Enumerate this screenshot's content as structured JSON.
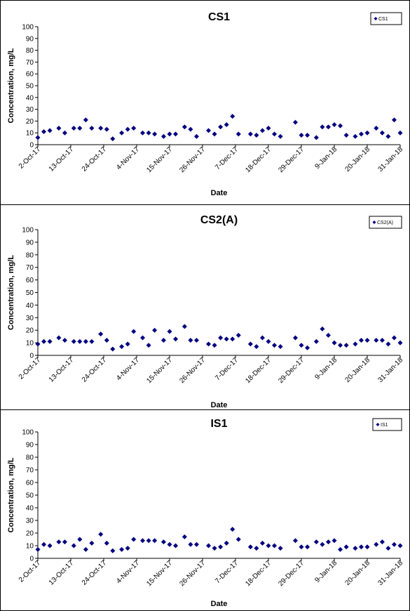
{
  "chart_data": [
    {
      "type": "scatter",
      "title": "CS1",
      "xlabel": "Date",
      "ylabel": "Concentration, mg/L",
      "ylim": [
        0,
        100
      ],
      "yticks": [
        "0",
        "10",
        "20",
        "30",
        "40",
        "50",
        "60",
        "70",
        "80",
        "90",
        "100"
      ],
      "xlim": [
        "2017-10-02",
        "2018-01-31"
      ],
      "xticks": [
        "2-Oct-17",
        "13-Oct-17",
        "24-Oct-17",
        "4-Nov-17",
        "15-Nov-17",
        "26-Nov-17",
        "7-Dec-17",
        "18-Dec-17",
        "29-Dec-17",
        "9-Jan-18",
        "20-Jan-18",
        "31-Jan-18"
      ],
      "legend": "top-right",
      "marker_color": "#000080",
      "series": [
        {
          "name": "CS1",
          "x": [
            "2017-10-02",
            "2017-10-04",
            "2017-10-06",
            "2017-10-09",
            "2017-10-11",
            "2017-10-14",
            "2017-10-16",
            "2017-10-18",
            "2017-10-20",
            "2017-10-23",
            "2017-10-25",
            "2017-10-27",
            "2017-10-30",
            "2017-11-01",
            "2017-11-03",
            "2017-11-06",
            "2017-11-08",
            "2017-11-10",
            "2017-11-13",
            "2017-11-15",
            "2017-11-17",
            "2017-11-20",
            "2017-11-22",
            "2017-11-24",
            "2017-11-28",
            "2017-11-30",
            "2017-12-02",
            "2017-12-04",
            "2017-12-06",
            "2017-12-08",
            "2017-12-12",
            "2017-12-14",
            "2017-12-16",
            "2017-12-18",
            "2017-12-20",
            "2017-12-22",
            "2017-12-27",
            "2017-12-29",
            "2017-12-31",
            "2018-01-03",
            "2018-01-05",
            "2018-01-07",
            "2018-01-09",
            "2018-01-11",
            "2018-01-13",
            "2018-01-16",
            "2018-01-18",
            "2018-01-20",
            "2018-01-23",
            "2018-01-25",
            "2018-01-27",
            "2018-01-29",
            "2018-01-31"
          ],
          "y": [
            6,
            11,
            12,
            14,
            10,
            14,
            14,
            21,
            14,
            14,
            13,
            5,
            10,
            13,
            14,
            10,
            10,
            9,
            7,
            9,
            9,
            15,
            13,
            7,
            12,
            9,
            15,
            17,
            24,
            9,
            9,
            8,
            12,
            14,
            9,
            7,
            19,
            8,
            8,
            6,
            15,
            15,
            17,
            16,
            8,
            7,
            9,
            10,
            14,
            10,
            7,
            21,
            10
          ]
        }
      ]
    },
    {
      "type": "scatter",
      "title": "CS2(A)",
      "xlabel": "Date",
      "ylabel": "Concentration, mg/L",
      "ylim": [
        0,
        100
      ],
      "yticks": [
        "0",
        "10",
        "20",
        "30",
        "40",
        "50",
        "60",
        "70",
        "80",
        "90",
        "100"
      ],
      "xlim": [
        "2017-10-02",
        "2018-01-31"
      ],
      "xticks": [
        "2-Oct-17",
        "13-Oct-17",
        "24-Oct-17",
        "4-Nov-17",
        "15-Nov-17",
        "26-Nov-17",
        "7-Dec-17",
        "18-Dec-17",
        "29-Dec-17",
        "9-Jan-18",
        "20-Jan-18",
        "31-Jan-18"
      ],
      "legend": "top-right",
      "marker_color": "#000080",
      "series": [
        {
          "name": "CS2(A)",
          "x": [
            "2017-10-02",
            "2017-10-04",
            "2017-10-06",
            "2017-10-09",
            "2017-10-11",
            "2017-10-14",
            "2017-10-16",
            "2017-10-18",
            "2017-10-20",
            "2017-10-23",
            "2017-10-25",
            "2017-10-27",
            "2017-10-30",
            "2017-11-01",
            "2017-11-03",
            "2017-11-06",
            "2017-11-08",
            "2017-11-10",
            "2017-11-13",
            "2017-11-15",
            "2017-11-17",
            "2017-11-20",
            "2017-11-22",
            "2017-11-24",
            "2017-11-28",
            "2017-11-30",
            "2017-12-02",
            "2017-12-04",
            "2017-12-06",
            "2017-12-08",
            "2017-12-12",
            "2017-12-14",
            "2017-12-16",
            "2017-12-18",
            "2017-12-20",
            "2017-12-22",
            "2017-12-27",
            "2017-12-29",
            "2017-12-31",
            "2018-01-03",
            "2018-01-05",
            "2018-01-07",
            "2018-01-09",
            "2018-01-11",
            "2018-01-13",
            "2018-01-16",
            "2018-01-18",
            "2018-01-20",
            "2018-01-23",
            "2018-01-25",
            "2018-01-27",
            "2018-01-29",
            "2018-01-31"
          ],
          "y": [
            9,
            11,
            11,
            14,
            12,
            11,
            11,
            11,
            11,
            17,
            12,
            5,
            7,
            9,
            19,
            14,
            8,
            20,
            12,
            19,
            13,
            23,
            12,
            12,
            9,
            8,
            14,
            13,
            13,
            16,
            9,
            7,
            14,
            11,
            8,
            7,
            14,
            8,
            6,
            11,
            21,
            16,
            10,
            8,
            8,
            9,
            12,
            12,
            12,
            12,
            9,
            14,
            10
          ]
        }
      ]
    },
    {
      "type": "scatter",
      "title": "IS1",
      "xlabel": "Date",
      "ylabel": "Concentration, mg/L",
      "ylim": [
        0,
        100
      ],
      "yticks": [
        "0",
        "10",
        "20",
        "30",
        "40",
        "50",
        "60",
        "70",
        "80",
        "90",
        "100"
      ],
      "xlim": [
        "2017-10-02",
        "2018-01-31"
      ],
      "xticks": [
        "2-Oct-17",
        "13-Oct-17",
        "24-Oct-17",
        "4-Nov-17",
        "15-Nov-17",
        "26-Nov-17",
        "7-Dec-17",
        "18-Dec-17",
        "29-Dec-17",
        "9-Jan-18",
        "20-Jan-18",
        "31-Jan-18"
      ],
      "legend": "top-right",
      "marker_color": "#000080",
      "series": [
        {
          "name": "IS1",
          "x": [
            "2017-10-02",
            "2017-10-04",
            "2017-10-06",
            "2017-10-09",
            "2017-10-11",
            "2017-10-14",
            "2017-10-16",
            "2017-10-18",
            "2017-10-20",
            "2017-10-23",
            "2017-10-25",
            "2017-10-27",
            "2017-10-30",
            "2017-11-01",
            "2017-11-03",
            "2017-11-06",
            "2017-11-08",
            "2017-11-10",
            "2017-11-13",
            "2017-11-15",
            "2017-11-17",
            "2017-11-20",
            "2017-11-22",
            "2017-11-24",
            "2017-11-28",
            "2017-11-30",
            "2017-12-02",
            "2017-12-04",
            "2017-12-06",
            "2017-12-08",
            "2017-12-12",
            "2017-12-14",
            "2017-12-16",
            "2017-12-18",
            "2017-12-20",
            "2017-12-22",
            "2017-12-27",
            "2017-12-29",
            "2017-12-31",
            "2018-01-03",
            "2018-01-05",
            "2018-01-07",
            "2018-01-09",
            "2018-01-11",
            "2018-01-13",
            "2018-01-16",
            "2018-01-18",
            "2018-01-20",
            "2018-01-23",
            "2018-01-25",
            "2018-01-27",
            "2018-01-29",
            "2018-01-31"
          ],
          "y": [
            7,
            11,
            10,
            13,
            13,
            10,
            15,
            7,
            12,
            19,
            12,
            6,
            7,
            8,
            15,
            14,
            14,
            14,
            13,
            11,
            10,
            17,
            11,
            11,
            10,
            8,
            9,
            12,
            23,
            15,
            9,
            8,
            12,
            10,
            10,
            8,
            14,
            9,
            9,
            13,
            11,
            13,
            14,
            7,
            9,
            8,
            9,
            9,
            11,
            13,
            8,
            11,
            10
          ]
        }
      ]
    }
  ]
}
